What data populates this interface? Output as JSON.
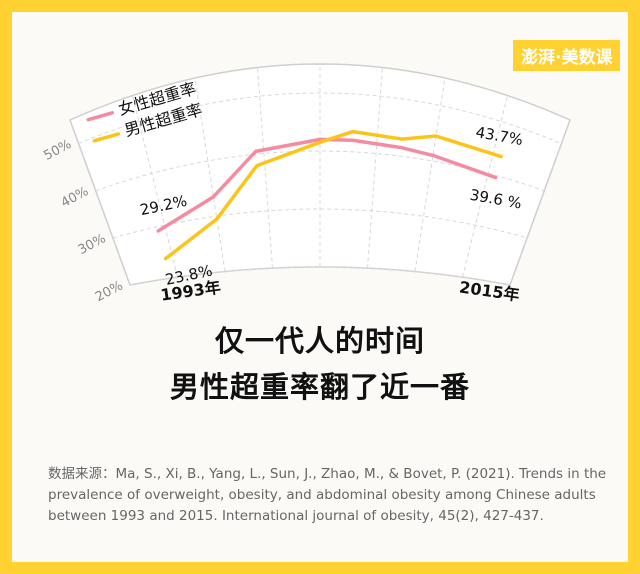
{
  "logo": "澎湃·美数课",
  "chart_data": {
    "type": "line",
    "title": "仅一代人的时间",
    "subtitle": "男性超重率翻了近一番",
    "source": "数据来源：Ma, S., Xi, B., Yang, L., Sun, J., Zhao, M., & Bovet, P. (2021). Trends in the prevalence of overweight, obesity, and abdominal obesity among Chinese adults between 1993 and 2015. International journal of obesity, 45(2), 427-437.",
    "x": [
      1993,
      1997,
      2000,
      2004,
      2006,
      2009,
      2011,
      2015
    ],
    "series": [
      {
        "name": "女性超重率",
        "color": "#f48ba0",
        "values": [
          29.2,
          33.5,
          40.5,
          42.0,
          42.0,
          41.5,
          41.0,
          39.6
        ],
        "value_labels": [
          "29.2%",
          null,
          null,
          null,
          null,
          null,
          null,
          "39.6 %"
        ]
      },
      {
        "name": "男性超重率",
        "color": "#fcc419",
        "values": [
          23.8,
          29.5,
          38.0,
          41.5,
          43.5,
          43.0,
          44.5,
          43.7
        ],
        "value_labels": [
          "23.8%",
          null,
          null,
          null,
          null,
          null,
          null,
          "43.7%"
        ]
      }
    ],
    "xlim": [
      1990,
      2018
    ],
    "xticks": [
      {
        "value": 1993,
        "label": "1993年"
      },
      {
        "value": 2015,
        "label": "2015年"
      }
    ],
    "ylim": [
      20,
      55
    ],
    "yticks": [
      {
        "value": 20,
        "label": "20%"
      },
      {
        "value": 30,
        "label": "30%"
      },
      {
        "value": 40,
        "label": "40%"
      },
      {
        "value": 50,
        "label": "50%"
      }
    ],
    "grid": true
  }
}
